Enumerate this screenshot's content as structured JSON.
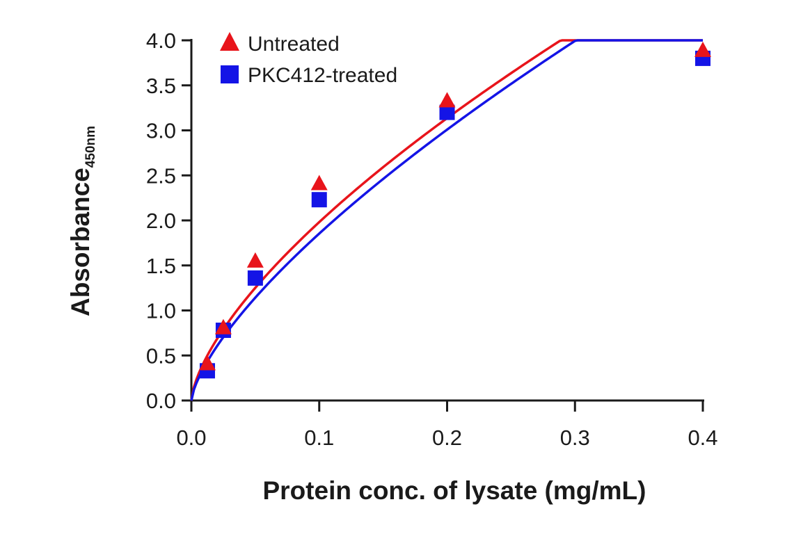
{
  "chart_data": {
    "type": "scatter",
    "xlabel": "Protein conc. of lysate (mg/mL)",
    "ylabel": "Absorbance",
    "ylabel_subscript": "450nm",
    "xlim": [
      0.0,
      0.4
    ],
    "ylim": [
      0.0,
      4.0
    ],
    "x_ticks": [
      "0.0",
      "0.1",
      "0.2",
      "0.3",
      "0.4"
    ],
    "y_ticks": [
      "0.0",
      "0.5",
      "1.0",
      "1.5",
      "2.0",
      "2.5",
      "3.0",
      "3.5",
      "4.0"
    ],
    "grid": false,
    "legend_position": "top-left",
    "fit_curves": true,
    "series": [
      {
        "name": "Untreated",
        "marker": "triangle",
        "color": "#e8141b",
        "x": [
          0.0125,
          0.025,
          0.05,
          0.1,
          0.2,
          0.4
        ],
        "y": [
          0.4,
          0.8,
          1.54,
          2.4,
          3.32,
          3.88
        ]
      },
      {
        "name": "PKC412-treated",
        "marker": "square",
        "color": "#1414e6",
        "x": [
          0.0125,
          0.025,
          0.05,
          0.1,
          0.2,
          0.4
        ],
        "y": [
          0.33,
          0.78,
          1.36,
          2.23,
          3.2,
          3.8
        ]
      }
    ]
  }
}
